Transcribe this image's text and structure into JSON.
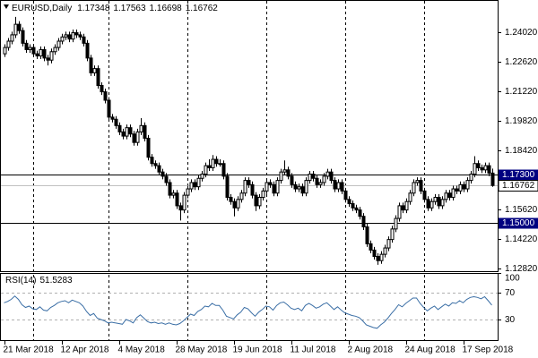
{
  "chart_data": {
    "type": "candlestick",
    "title": "EURUSD,Daily",
    "categories": [
      "21 Mar 2018",
      null,
      null,
      null,
      null,
      null,
      null,
      null,
      null,
      null,
      null,
      null,
      null,
      null,
      null,
      null,
      "12 Apr 2018",
      null,
      null,
      null,
      null,
      null,
      null,
      null,
      null,
      null,
      null,
      null,
      null,
      null,
      null,
      null,
      "4 May 2018",
      null,
      null,
      null,
      null,
      null,
      null,
      null,
      null,
      null,
      null,
      null,
      null,
      null,
      null,
      null,
      "28 May 2018",
      null,
      null,
      null,
      null,
      null,
      null,
      null,
      null,
      null,
      null,
      null,
      null,
      null,
      null,
      null,
      "19 Jun 2018",
      null,
      null,
      null,
      null,
      null,
      null,
      null,
      null,
      null,
      null,
      null,
      null,
      null,
      null,
      null,
      "11 Jul 2018",
      null,
      null,
      null,
      null,
      null,
      null,
      null,
      null,
      null,
      null,
      null,
      null,
      null,
      null,
      null,
      "2 Aug 2018",
      null,
      null,
      null,
      null,
      null,
      null,
      null,
      null,
      null,
      null,
      null,
      null,
      null,
      null,
      null,
      "24 Aug 2018",
      null,
      null,
      null,
      null,
      null,
      null,
      null,
      null,
      null,
      null,
      null,
      null,
      null,
      null,
      null,
      "17 Sep 2018",
      null,
      null,
      null,
      null,
      null,
      null,
      null,
      null
    ],
    "open": [
      1.23,
      1.233,
      1.236,
      1.239,
      1.244,
      1.241,
      1.235,
      1.232,
      1.233,
      1.23,
      1.229,
      1.232,
      1.228,
      1.227,
      1.231,
      1.233,
      1.236,
      1.238,
      1.239,
      1.237,
      1.24,
      1.239,
      1.238,
      1.235,
      1.228,
      1.221,
      1.223,
      1.215,
      1.212,
      1.208,
      1.2,
      1.199,
      1.196,
      1.193,
      1.191,
      1.195,
      1.192,
      1.188,
      1.193,
      1.196,
      1.19,
      1.181,
      1.178,
      1.177,
      1.174,
      1.172,
      1.169,
      1.163,
      1.164,
      1.158,
      1.156,
      1.163,
      1.166,
      1.169,
      1.167,
      1.171,
      1.173,
      1.177,
      1.176,
      1.18,
      1.178,
      1.178,
      1.172,
      1.162,
      1.16,
      1.157,
      1.161,
      1.164,
      1.17,
      1.168,
      1.163,
      1.158,
      1.162,
      1.165,
      1.169,
      1.168,
      1.164,
      1.17,
      1.174,
      1.175,
      1.172,
      1.168,
      1.166,
      1.167,
      1.164,
      1.17,
      1.173,
      1.171,
      1.168,
      1.169,
      1.172,
      1.174,
      1.17,
      1.166,
      1.169,
      1.165,
      1.161,
      1.159,
      1.157,
      1.156,
      1.153,
      1.148,
      1.14,
      1.137,
      1.134,
      1.132,
      1.135,
      1.138,
      1.142,
      1.147,
      1.152,
      1.158,
      1.156,
      1.16,
      1.164,
      1.169,
      1.17,
      1.165,
      1.161,
      1.157,
      1.16,
      1.162,
      1.158,
      1.161,
      1.164,
      1.162,
      1.166,
      1.165,
      1.168,
      1.166,
      1.17,
      1.173,
      1.178,
      1.176,
      1.175,
      1.177,
      1.17348
    ],
    "high": [
      1.2345,
      1.2375,
      1.2405,
      1.2475,
      1.2455,
      1.2425,
      1.2365,
      1.2345,
      1.2345,
      1.2315,
      1.2335,
      1.2335,
      1.2295,
      1.2325,
      1.2345,
      1.2375,
      1.2395,
      1.2405,
      1.2405,
      1.2415,
      1.2415,
      1.2405,
      1.2395,
      1.2365,
      1.2295,
      1.2245,
      1.2245,
      1.2165,
      1.2135,
      1.2095,
      1.2015,
      1.2005,
      1.1975,
      1.1945,
      1.1965,
      1.1965,
      1.1935,
      1.1945,
      1.1995,
      1.1975,
      1.1915,
      1.1825,
      1.1795,
      1.1785,
      1.1755,
      1.1735,
      1.1705,
      1.1655,
      1.1655,
      1.1595,
      1.1645,
      1.1675,
      1.1705,
      1.1705,
      1.1725,
      1.1745,
      1.1785,
      1.18,
      1.182,
      1.1815,
      1.18,
      1.1795,
      1.1735,
      1.1635,
      1.1615,
      1.1625,
      1.1655,
      1.1715,
      1.1715,
      1.1695,
      1.1645,
      1.1635,
      1.1665,
      1.1705,
      1.1705,
      1.1695,
      1.1715,
      1.1755,
      1.1795,
      1.1765,
      1.1735,
      1.1695,
      1.1685,
      1.1685,
      1.1715,
      1.1745,
      1.1745,
      1.1725,
      1.1705,
      1.1735,
      1.1755,
      1.1755,
      1.1715,
      1.1705,
      1.1705,
      1.1665,
      1.1625,
      1.1605,
      1.1585,
      1.1575,
      1.1545,
      1.1495,
      1.1415,
      1.1385,
      1.1355,
      1.1365,
      1.1395,
      1.1435,
      1.1485,
      1.1535,
      1.1595,
      1.1595,
      1.1615,
      1.1655,
      1.1705,
      1.1715,
      1.1715,
      1.1665,
      1.1625,
      1.1615,
      1.1635,
      1.1635,
      1.1625,
      1.1655,
      1.1655,
      1.1675,
      1.1675,
      1.1695,
      1.1695,
      1.1715,
      1.1745,
      1.1815,
      1.1795,
      1.1775,
      1.1785,
      1.1785,
      1.17563
    ],
    "low": [
      1.2285,
      1.2315,
      1.2345,
      1.2375,
      1.2395,
      1.2335,
      1.2305,
      1.2305,
      1.2285,
      1.2275,
      1.2275,
      1.2265,
      1.2245,
      1.2255,
      1.2295,
      1.2315,
      1.2345,
      1.2365,
      1.2355,
      1.2355,
      1.2375,
      1.2365,
      1.2335,
      1.2265,
      1.2195,
      1.2195,
      1.2135,
      1.2105,
      1.2065,
      1.1985,
      1.1975,
      1.1945,
      1.1915,
      1.1895,
      1.1895,
      1.1905,
      1.1865,
      1.1865,
      1.1915,
      1.1885,
      1.1795,
      1.1765,
      1.1755,
      1.1725,
      1.1705,
      1.1675,
      1.1615,
      1.1615,
      1.1565,
      1.151,
      1.1545,
      1.1615,
      1.1645,
      1.1655,
      1.1655,
      1.1695,
      1.1715,
      1.1745,
      1.1745,
      1.1765,
      1.1765,
      1.1705,
      1.1605,
      1.1585,
      1.153,
      1.1555,
      1.1595,
      1.1625,
      1.1665,
      1.1615,
      1.1555,
      1.1565,
      1.1605,
      1.1635,
      1.1665,
      1.1625,
      1.1625,
      1.1685,
      1.1725,
      1.1705,
      1.1665,
      1.1645,
      1.1645,
      1.1625,
      1.1625,
      1.1685,
      1.1695,
      1.1665,
      1.1665,
      1.1675,
      1.1705,
      1.1685,
      1.1645,
      1.1645,
      1.1635,
      1.1595,
      1.1575,
      1.1555,
      1.1545,
      1.1515,
      1.1465,
      1.1385,
      1.1355,
      1.1325,
      1.13,
      1.1305,
      1.1335,
      1.1365,
      1.1405,
      1.1455,
      1.1505,
      1.1545,
      1.1545,
      1.1585,
      1.1625,
      1.1675,
      1.1635,
      1.1595,
      1.1555,
      1.1555,
      1.1585,
      1.1565,
      1.1565,
      1.1595,
      1.1605,
      1.1605,
      1.1635,
      1.1635,
      1.1645,
      1.1645,
      1.1685,
      1.1715,
      1.1745,
      1.1735,
      1.1735,
      1.172,
      1.16698
    ],
    "close": [
      1.233,
      1.236,
      1.239,
      1.244,
      1.241,
      1.235,
      1.232,
      1.233,
      1.23,
      1.229,
      1.232,
      1.228,
      1.227,
      1.231,
      1.233,
      1.236,
      1.238,
      1.239,
      1.237,
      1.24,
      1.239,
      1.238,
      1.235,
      1.228,
      1.221,
      1.223,
      1.215,
      1.212,
      1.208,
      1.2,
      1.199,
      1.196,
      1.193,
      1.191,
      1.195,
      1.192,
      1.188,
      1.193,
      1.196,
      1.19,
      1.181,
      1.178,
      1.177,
      1.174,
      1.172,
      1.169,
      1.163,
      1.164,
      1.158,
      1.156,
      1.163,
      1.166,
      1.169,
      1.167,
      1.171,
      1.173,
      1.177,
      1.176,
      1.18,
      1.178,
      1.178,
      1.172,
      1.162,
      1.16,
      1.157,
      1.161,
      1.164,
      1.17,
      1.168,
      1.163,
      1.158,
      1.162,
      1.165,
      1.169,
      1.168,
      1.164,
      1.17,
      1.174,
      1.175,
      1.172,
      1.168,
      1.166,
      1.167,
      1.164,
      1.17,
      1.173,
      1.171,
      1.168,
      1.169,
      1.172,
      1.174,
      1.17,
      1.166,
      1.169,
      1.165,
      1.161,
      1.159,
      1.157,
      1.156,
      1.153,
      1.148,
      1.14,
      1.137,
      1.134,
      1.132,
      1.135,
      1.138,
      1.142,
      1.147,
      1.152,
      1.158,
      1.156,
      1.16,
      1.164,
      1.169,
      1.17,
      1.165,
      1.161,
      1.157,
      1.16,
      1.162,
      1.158,
      1.161,
      1.164,
      1.162,
      1.166,
      1.165,
      1.168,
      1.166,
      1.17,
      1.173,
      1.178,
      1.176,
      1.175,
      1.177,
      1.17348,
      1.16762
    ],
    "up_color": "#ffffff",
    "down_color": "#000000",
    "ylim": [
      1.127,
      1.2555
    ],
    "yticks": [
      {
        "value": 1.2402,
        "label": "1.24020"
      },
      {
        "value": 1.2262,
        "label": "1.22620"
      },
      {
        "value": 1.2122,
        "label": "1.21220"
      },
      {
        "value": 1.1982,
        "label": "1.19820"
      },
      {
        "value": 1.1842,
        "label": "1.18420"
      },
      {
        "value": 1.1562,
        "label": "1.15620"
      },
      {
        "value": 1.1422,
        "label": "1.14220"
      },
      {
        "value": 1.1282,
        "label": "1.12820"
      }
    ],
    "levels": [
      {
        "value": 1.173,
        "label": "1.17300"
      },
      {
        "value": 1.15,
        "label": "1.15000"
      }
    ],
    "level_color": "#000080",
    "current_price_color": "#c0c0c0",
    "separators": [
      8,
      29,
      51,
      73,
      95,
      117
    ],
    "indicator": {
      "name": "RSI(14)",
      "color": "#3a6ea5",
      "values": [
        55,
        57,
        60,
        65,
        60,
        52,
        48,
        50,
        46,
        45,
        49,
        44,
        43,
        48,
        51,
        55,
        57,
        58,
        55,
        59,
        57,
        55,
        50,
        42,
        36,
        39,
        32,
        30,
        28,
        25,
        26,
        25,
        24,
        23,
        30,
        28,
        25,
        33,
        37,
        32,
        27,
        25,
        26,
        24,
        25,
        23,
        25,
        23,
        22,
        24,
        28,
        33,
        38,
        36,
        42,
        45,
        50,
        49,
        54,
        51,
        51,
        44,
        35,
        33,
        31,
        37,
        41,
        48,
        46,
        40,
        35,
        41,
        45,
        50,
        49,
        44,
        51,
        55,
        56,
        52,
        47,
        45,
        47,
        43,
        51,
        54,
        51,
        47,
        49,
        53,
        55,
        50,
        45,
        49,
        44,
        40,
        38,
        36,
        35,
        33,
        28,
        22,
        20,
        18,
        17,
        22,
        26,
        32,
        39,
        45,
        52,
        49,
        54,
        58,
        62,
        62,
        54,
        48,
        43,
        47,
        50,
        45,
        49,
        53,
        50,
        55,
        54,
        58,
        55,
        60,
        63,
        64,
        63,
        61,
        64,
        58,
        51.5283
      ],
      "ylim": [
        0,
        100
      ],
      "yticks": [
        30,
        70,
        100
      ],
      "levels": [
        30,
        70
      ]
    }
  }
}
